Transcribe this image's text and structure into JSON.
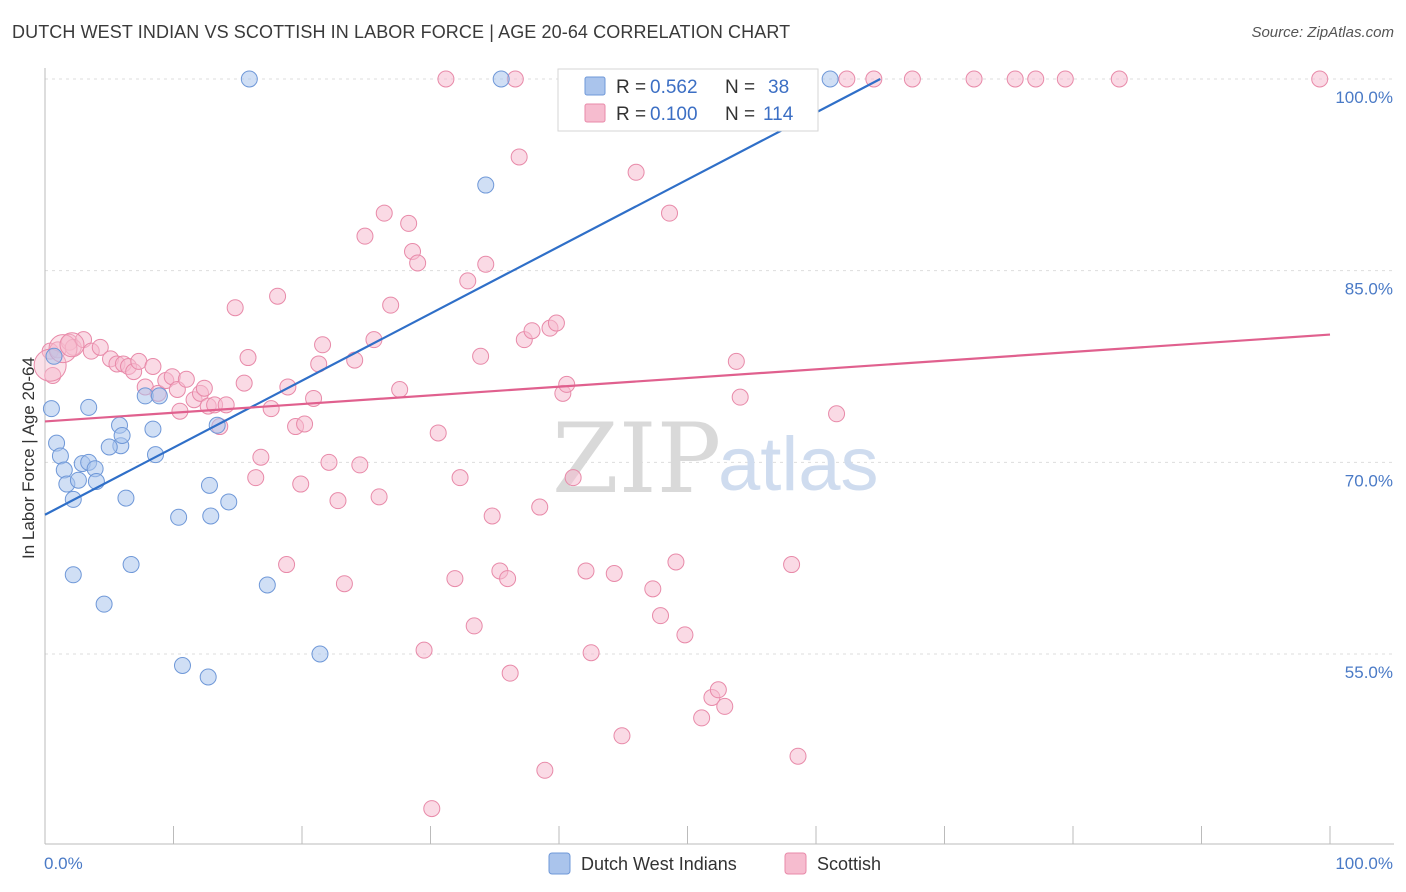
{
  "title": "DUTCH WEST INDIAN VS SCOTTISH IN LABOR FORCE | AGE 20-64 CORRELATION CHART",
  "source": "Source: ZipAtlas.com",
  "watermark": {
    "zip": "ZIP",
    "atlas": "atlas"
  },
  "colors": {
    "blue_fill": "#aac4ec",
    "blue_stroke": "#6f98d8",
    "blue_line": "#2f6fc8",
    "pink_fill": "#f6bccf",
    "pink_stroke": "#e88aa9",
    "pink_line": "#e0608e",
    "tick": "#4a7ac6",
    "grid": "#dddddd"
  },
  "legend": {
    "r_label": "R =",
    "n_label": "N =",
    "rows": [
      {
        "r": "0.562",
        "n": "38"
      },
      {
        "r": "0.100",
        "n": "114"
      }
    ]
  },
  "bottom_legend": [
    "Dutch West Indians",
    "Scottish"
  ],
  "chart_data": {
    "type": "scatter",
    "title": "DUTCH WEST INDIAN VS SCOTTISH IN LABOR FORCE | AGE 20-64 CORRELATION CHART",
    "xlabel": "",
    "ylabel": "In Labor Force | Age 20-64",
    "xlim": [
      0,
      100
    ],
    "ylim": [
      42,
      100.8
    ],
    "x_tick_labels": [
      "0.0%",
      "100.0%"
    ],
    "y_ticks": [
      55,
      70,
      85,
      100
    ],
    "y_tick_labels": [
      "55.0%",
      "70.0%",
      "85.0%",
      "100.0%"
    ],
    "grid": "horizontal dashed",
    "legend_position": "top-center",
    "series": [
      {
        "name": "Dutch West Indians",
        "r": 0.562,
        "n": 38,
        "trend": {
          "x": [
            0,
            65.0
          ],
          "y": [
            65.9,
            100.0
          ]
        },
        "points": [
          [
            0.7,
            78.3
          ],
          [
            0.5,
            74.2
          ],
          [
            0.9,
            71.5
          ],
          [
            1.2,
            70.5
          ],
          [
            1.5,
            69.4
          ],
          [
            1.7,
            68.3
          ],
          [
            2.2,
            67.1
          ],
          [
            2.6,
            68.6
          ],
          [
            2.9,
            69.9
          ],
          [
            3.4,
            70.0
          ],
          [
            3.9,
            69.5
          ],
          [
            4.0,
            68.5
          ],
          [
            3.4,
            74.3
          ],
          [
            5.9,
            71.3
          ],
          [
            5.0,
            71.2
          ],
          [
            5.8,
            72.9
          ],
          [
            6.0,
            72.1
          ],
          [
            6.3,
            67.2
          ],
          [
            6.7,
            62.0
          ],
          [
            7.8,
            75.2
          ],
          [
            8.4,
            72.6
          ],
          [
            8.6,
            70.6
          ],
          [
            8.9,
            75.2
          ],
          [
            10.4,
            65.7
          ],
          [
            12.8,
            68.2
          ],
          [
            12.9,
            65.8
          ],
          [
            13.4,
            72.9
          ],
          [
            14.3,
            66.9
          ],
          [
            2.2,
            61.2
          ],
          [
            4.6,
            58.9
          ],
          [
            17.3,
            60.4
          ],
          [
            21.4,
            55.0
          ],
          [
            10.7,
            54.1
          ],
          [
            12.7,
            53.2
          ],
          [
            15.9,
            100.0
          ],
          [
            34.3,
            91.7
          ],
          [
            35.5,
            100.0
          ],
          [
            61.1,
            100.0
          ]
        ]
      },
      {
        "name": "Scottish",
        "r": 0.1,
        "n": 114,
        "trend": {
          "x": [
            0,
            100.0
          ],
          "y": [
            73.2,
            80.0
          ]
        },
        "points": [
          [
            0.4,
            78.7
          ],
          [
            0.6,
            76.8
          ],
          [
            1.0,
            78.8
          ],
          [
            1.9,
            79.4
          ],
          [
            2.2,
            79.0
          ],
          [
            3.0,
            79.6
          ],
          [
            3.6,
            78.7
          ],
          [
            4.3,
            79.0
          ],
          [
            5.1,
            78.1
          ],
          [
            5.6,
            77.7
          ],
          [
            6.1,
            77.7
          ],
          [
            6.5,
            77.5
          ],
          [
            6.9,
            77.1
          ],
          [
            7.3,
            77.9
          ],
          [
            7.8,
            75.9
          ],
          [
            8.4,
            77.5
          ],
          [
            8.8,
            75.4
          ],
          [
            9.4,
            76.4
          ],
          [
            9.9,
            76.7
          ],
          [
            10.3,
            75.7
          ],
          [
            10.5,
            74.0
          ],
          [
            11.0,
            76.5
          ],
          [
            11.6,
            74.9
          ],
          [
            12.1,
            75.4
          ],
          [
            12.4,
            75.8
          ],
          [
            12.7,
            74.4
          ],
          [
            13.2,
            74.5
          ],
          [
            13.6,
            72.8
          ],
          [
            14.1,
            74.5
          ],
          [
            14.8,
            82.1
          ],
          [
            15.5,
            76.2
          ],
          [
            15.8,
            78.2
          ],
          [
            16.8,
            70.4
          ],
          [
            16.4,
            68.8
          ],
          [
            17.6,
            74.2
          ],
          [
            18.1,
            83.0
          ],
          [
            18.8,
            62.0
          ],
          [
            18.9,
            75.9
          ],
          [
            19.5,
            72.8
          ],
          [
            19.9,
            68.3
          ],
          [
            20.2,
            73.0
          ],
          [
            20.9,
            75.0
          ],
          [
            21.3,
            77.7
          ],
          [
            21.6,
            79.2
          ],
          [
            22.1,
            70.0
          ],
          [
            22.8,
            67.0
          ],
          [
            23.3,
            60.5
          ],
          [
            24.1,
            78.0
          ],
          [
            24.5,
            69.8
          ],
          [
            24.9,
            87.7
          ],
          [
            25.6,
            79.6
          ],
          [
            26.0,
            67.3
          ],
          [
            26.4,
            89.5
          ],
          [
            26.9,
            82.3
          ],
          [
            27.6,
            75.7
          ],
          [
            28.3,
            88.7
          ],
          [
            28.6,
            86.5
          ],
          [
            29.0,
            85.6
          ],
          [
            29.5,
            55.3
          ],
          [
            30.1,
            42.9
          ],
          [
            30.6,
            72.3
          ],
          [
            31.2,
            100.0
          ],
          [
            31.9,
            60.9
          ],
          [
            32.3,
            68.8
          ],
          [
            32.9,
            84.2
          ],
          [
            33.4,
            57.2
          ],
          [
            33.9,
            78.3
          ],
          [
            34.3,
            85.5
          ],
          [
            34.8,
            65.8
          ],
          [
            35.4,
            61.5
          ],
          [
            36.0,
            60.9
          ],
          [
            36.2,
            53.5
          ],
          [
            36.6,
            100.0
          ],
          [
            36.9,
            93.9
          ],
          [
            37.3,
            79.6
          ],
          [
            37.9,
            80.3
          ],
          [
            38.5,
            66.5
          ],
          [
            38.9,
            45.9
          ],
          [
            39.3,
            80.5
          ],
          [
            39.8,
            80.9
          ],
          [
            40.3,
            75.4
          ],
          [
            40.6,
            76.1
          ],
          [
            41.1,
            68.8
          ],
          [
            42.1,
            61.5
          ],
          [
            42.5,
            55.1
          ],
          [
            44.3,
            61.3
          ],
          [
            44.9,
            48.6
          ],
          [
            45.3,
            100.0
          ],
          [
            46.0,
            92.7
          ],
          [
            47.3,
            60.1
          ],
          [
            47.9,
            58.0
          ],
          [
            48.6,
            89.5
          ],
          [
            49.1,
            62.2
          ],
          [
            49.8,
            56.5
          ],
          [
            51.1,
            50.0
          ],
          [
            51.9,
            51.6
          ],
          [
            52.4,
            52.2
          ],
          [
            52.9,
            50.9
          ],
          [
            53.8,
            77.9
          ],
          [
            54.1,
            75.1
          ],
          [
            57.3,
            100.0
          ],
          [
            58.1,
            62.0
          ],
          [
            58.6,
            47.0
          ],
          [
            61.6,
            73.8
          ],
          [
            64.5,
            100.0
          ],
          [
            67.5,
            100.0
          ],
          [
            72.3,
            100.0
          ],
          [
            75.5,
            100.0
          ],
          [
            77.1,
            100.0
          ],
          [
            79.4,
            100.0
          ],
          [
            83.6,
            100.0
          ],
          [
            99.2,
            100.0
          ],
          [
            57.1,
            100.0
          ],
          [
            62.4,
            100.0
          ]
        ]
      }
    ]
  }
}
